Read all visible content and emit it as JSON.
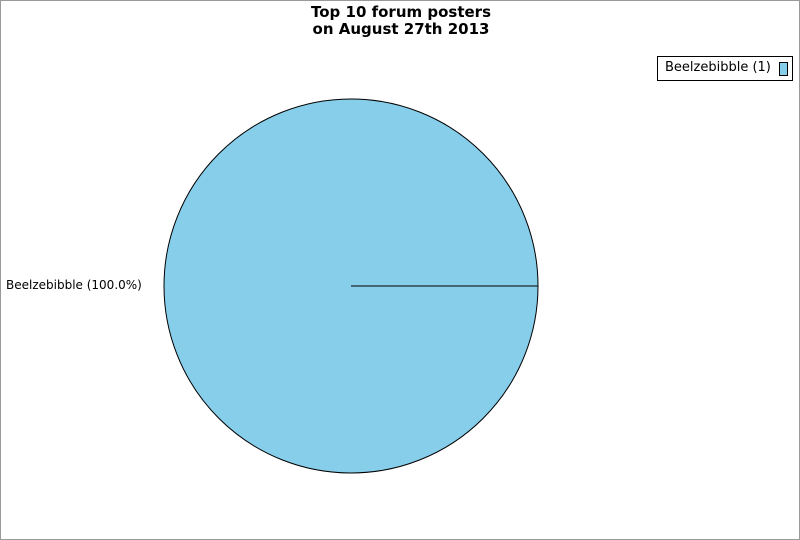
{
  "chart_data": {
    "type": "pie",
    "title": [
      "Top 10 forum posters",
      "on August 27th 2013"
    ],
    "slices": [
      {
        "name": "Beelzebibble",
        "value": 1,
        "percent": 100.0,
        "label": "Beelzebibble (100.0%)",
        "legend": "Beelzebibble (1)",
        "color": "#87ceeb"
      }
    ],
    "legend_placement": "top-right"
  }
}
